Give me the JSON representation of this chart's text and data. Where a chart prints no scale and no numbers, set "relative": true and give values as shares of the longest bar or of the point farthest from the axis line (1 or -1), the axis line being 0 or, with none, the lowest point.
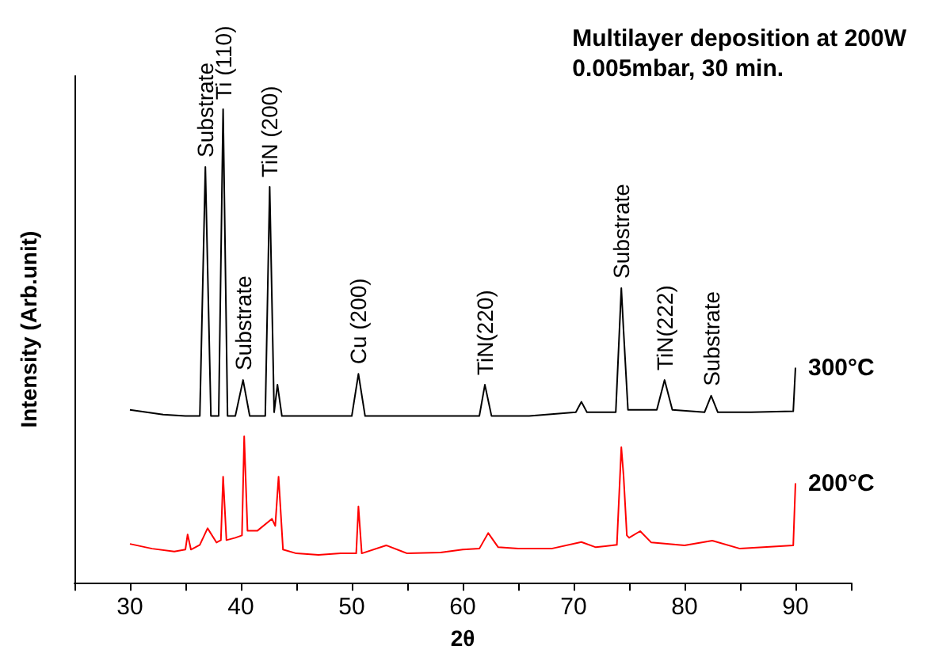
{
  "chart_data": {
    "type": "line",
    "title": "Multilayer deposition at 200W",
    "subtitle": "0.005mbar, 30 min.",
    "xlabel": "2θ",
    "ylabel": "Intensity (Arb.unit)",
    "relative": true,
    "grid": false,
    "legend": false,
    "marker": "none",
    "xlim": [
      25,
      95
    ],
    "xticks": [
      {
        "value": 25,
        "label": null
      },
      30,
      {
        "value": 35,
        "label": null
      },
      40,
      {
        "value": 45,
        "label": null
      },
      50,
      {
        "value": 55,
        "label": null
      },
      60,
      {
        "value": 65,
        "label": null
      },
      70,
      {
        "value": 75,
        "label": null
      },
      80,
      {
        "value": 85,
        "label": null
      },
      90,
      {
        "value": 95,
        "label": null
      }
    ],
    "series": [
      {
        "name": "300°C",
        "color": "#000000",
        "x": [
          30,
          33,
          35,
          36.3,
          36.8,
          37.3,
          38,
          38.4,
          38.8,
          39.5,
          40.2,
          40.8,
          42.2,
          42.6,
          43,
          43.3,
          43.7,
          46,
          50,
          50.6,
          51.2,
          55,
          60,
          61.5,
          62,
          62.6,
          66,
          70.2,
          70.7,
          71.2,
          73.8,
          74.3,
          74.5,
          74.9,
          77.5,
          78.2,
          78.9,
          81.8,
          82.4,
          83,
          86,
          89.8,
          90
        ],
        "values": [
          0.365,
          0.355,
          0.352,
          0.352,
          0.878,
          0.352,
          0.352,
          1,
          0.352,
          0.352,
          0.428,
          0.352,
          0.352,
          0.836,
          0.36,
          0.418,
          0.352,
          0.352,
          0.352,
          0.441,
          0.352,
          0.352,
          0.352,
          0.352,
          0.418,
          0.352,
          0.352,
          0.36,
          0.382,
          0.36,
          0.36,
          0.622,
          0.533,
          0.365,
          0.365,
          0.428,
          0.365,
          0.36,
          0.395,
          0.36,
          0.36,
          0.362,
          0.454
        ]
      },
      {
        "name": "200°C",
        "color": "#ff0000",
        "x": [
          30,
          32,
          34,
          35,
          35.2,
          35.5,
          36.3,
          37,
          37.8,
          38.2,
          38.4,
          38.7,
          39.5,
          40.1,
          40.3,
          40.6,
          41.5,
          42.8,
          43.1,
          43.4,
          43.8,
          45,
          47,
          49,
          50.4,
          50.6,
          50.9,
          53.1,
          55,
          58,
          60,
          61.5,
          62.3,
          63.2,
          65,
          68,
          70.7,
          72,
          73.9,
          74.3,
          74.5,
          74.8,
          75,
          76,
          77,
          80,
          82.5,
          85,
          89.8,
          90
        ],
        "values": [
          0.082,
          0.072,
          0.066,
          0.07,
          0.102,
          0.07,
          0.08,
          0.115,
          0.085,
          0.09,
          0.224,
          0.09,
          0.095,
          0.1,
          0.309,
          0.11,
          0.11,
          0.135,
          0.12,
          0.224,
          0.07,
          0.062,
          0.059,
          0.062,
          0.062,
          0.161,
          0.062,
          0.079,
          0.062,
          0.064,
          0.07,
          0.072,
          0.105,
          0.075,
          0.072,
          0.072,
          0.086,
          0.075,
          0.08,
          0.286,
          0.227,
          0.1,
          0.095,
          0.109,
          0.085,
          0.079,
          0.089,
          0.072,
          0.079,
          0.21
        ]
      }
    ],
    "annotations": [
      {
        "text": "Substrate",
        "x": 36.8,
        "y": 0.878
      },
      {
        "text": "Ti (110)",
        "x": 38.4,
        "y": 1
      },
      {
        "text": "Substrate",
        "x": 40.2,
        "y": 0.428
      },
      {
        "text": "TiN (200)",
        "x": 42.6,
        "y": 0.836
      },
      {
        "text": "Cu (200)",
        "x": 50.6,
        "y": 0.441
      },
      {
        "text": "TiN(220)",
        "x": 62,
        "y": 0.418
      },
      {
        "text": "Substrate",
        "x": 74.3,
        "y": 0.622
      },
      {
        "text": "TiN(222)",
        "x": 78.2,
        "y": 0.428
      },
      {
        "text": "Substrate",
        "x": 82.4,
        "y": 0.395
      }
    ]
  }
}
